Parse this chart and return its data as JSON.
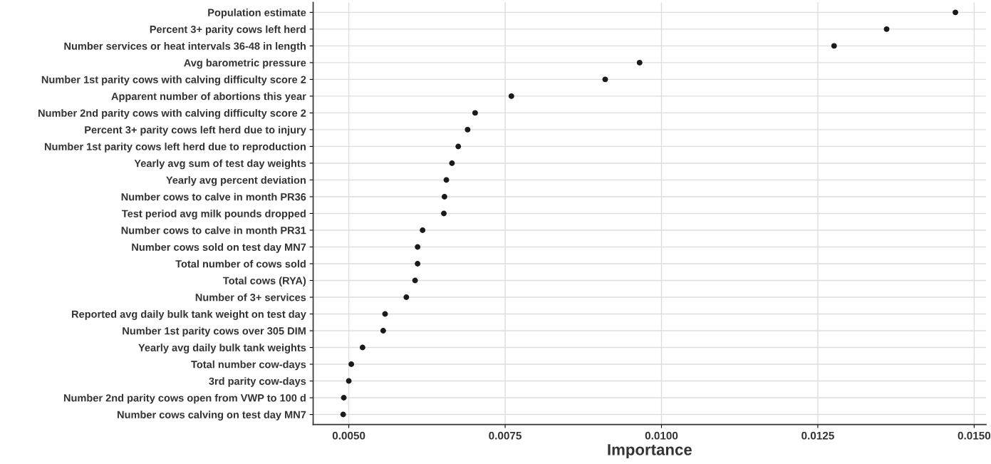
{
  "chart_data": {
    "type": "scatter",
    "xlabel": "Importance",
    "orientation": "horizontal",
    "marker": "circle",
    "grid": true,
    "categories": [
      "Population estimate",
      "Percent 3+ parity cows left herd",
      "Number services or heat intervals 36-48 in length",
      "Avg barometric pressure",
      "Number 1st parity cows with calving difficulty score 2",
      "Apparent number of abortions this year",
      "Number 2nd parity cows with calving difficulty score 2",
      "Percent 3+ parity cows left herd due to injury",
      "Number 1st parity cows left herd due to reproduction",
      "Yearly avg sum of test day weights",
      "Yearly avg percent deviation",
      "Number cows to calve in month PR36",
      "Test period avg milk pounds dropped",
      "Number cows to calve in month PR31",
      "Number cows sold on test day MN7",
      "Total number of cows sold",
      "Total cows (RYA)",
      "Number of 3+ services",
      "Reported avg daily bulk tank weight on test day",
      "Number 1st parity cows over 305 DIM",
      "Yearly avg daily bulk tank weights",
      "Total number cow-days",
      "3rd parity cow-days",
      "Number 2nd parity cows open from VWP to 100 d",
      "Number cows calving on test day MN7"
    ],
    "series": [
      {
        "color": "#1a1a1a",
        "values": [
          0.0147,
          0.0136,
          0.01276,
          0.00965,
          0.0091,
          0.0076,
          0.00702,
          0.0069,
          0.00675,
          0.00665,
          0.00656,
          0.00653,
          0.00652,
          0.00618,
          0.0061,
          0.0061,
          0.00606,
          0.00592,
          0.00558,
          0.00555,
          0.00522,
          0.00504,
          0.005,
          0.00492,
          0.00491
        ]
      }
    ],
    "xlim": [
      0.00443,
      0.01519
    ],
    "xticks": [
      {
        "value": 0.005,
        "label": "0.0050"
      },
      {
        "value": 0.0075,
        "label": "0.0075"
      },
      {
        "value": 0.01,
        "label": "0.0100"
      },
      {
        "value": 0.0125,
        "label": "0.0125"
      },
      {
        "value": 0.015,
        "label": "0.0150"
      }
    ]
  }
}
